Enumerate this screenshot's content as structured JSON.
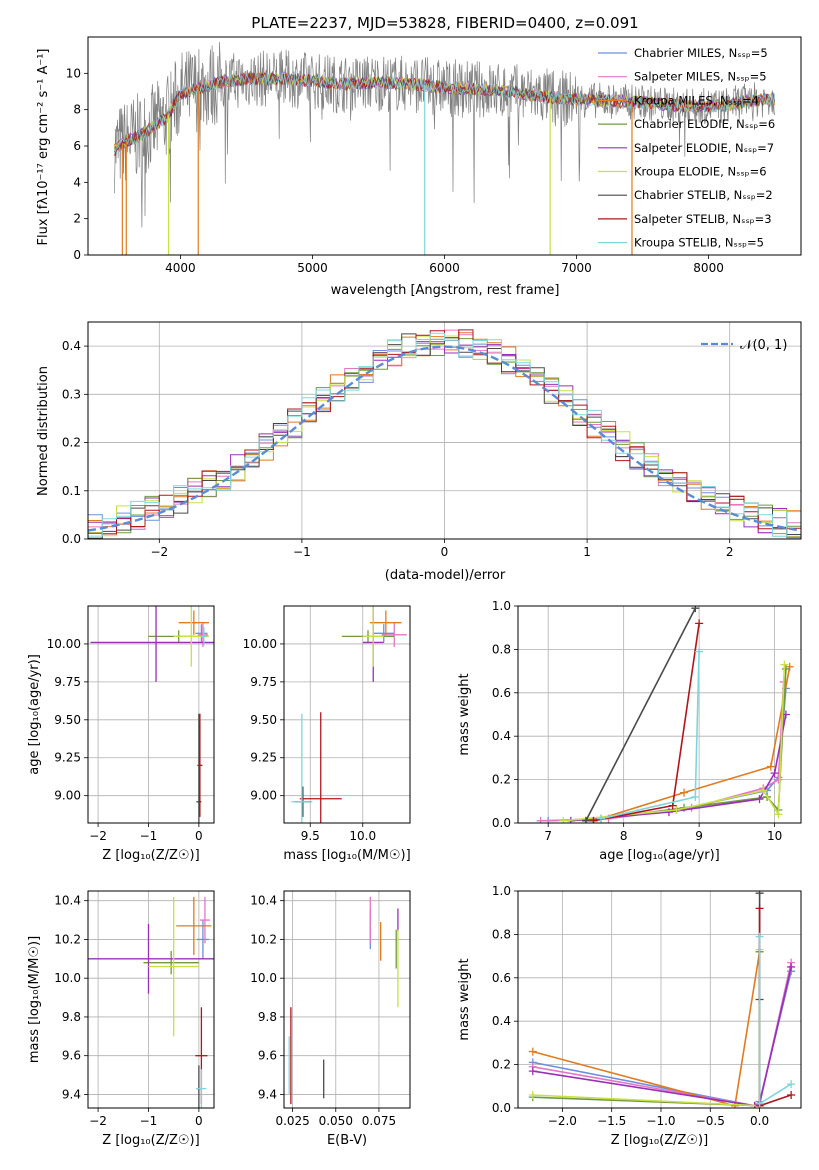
{
  "colors": {
    "Chabrier MILES": "#6b8fe0",
    "Salpeter MILES": "#e377c2",
    "Kroupa MILES": "#e07b20",
    "Chabrier ELODIE": "#6f9a3f",
    "Salpeter ELODIE": "#9a30b8",
    "Kroupa ELODIE": "#c8e045",
    "Chabrier STELIB": "#4a4a4a",
    "Salpeter STELIB": "#b0151b",
    "Kroupa STELIB": "#7ed6dc",
    "normal": "#5b8bd6",
    "data": "#808080"
  },
  "chart_data": [
    {
      "id": "spectrum",
      "type": "line",
      "title": "PLATE=2237, MJD=53828, FIBERID=0400, z=0.091",
      "xlabel": "wavelength [Angstrom, rest frame]",
      "ylabel": "Flux [fλ10⁻¹⁷ erg cm⁻² s⁻¹ A⁻¹]",
      "xlim": [
        3300,
        8700
      ],
      "ylim": [
        0,
        12
      ],
      "xticks": [
        "4000",
        "5000",
        "6000",
        "7000",
        "8000"
      ],
      "yticks": [
        "0",
        "2",
        "4",
        "6",
        "8",
        "10"
      ],
      "legend_position": "right",
      "legend": [
        {
          "label": "Chabrier MILES, Nₛₛₚ=5",
          "series": "Chabrier MILES"
        },
        {
          "label": "Salpeter MILES, Nₛₛₚ=5",
          "series": "Salpeter MILES"
        },
        {
          "label": "Kroupa MILES, Nₛₛₚ=4",
          "series": "Kroupa MILES"
        },
        {
          "label": "Chabrier ELODIE, Nₛₛₚ=6",
          "series": "Chabrier ELODIE"
        },
        {
          "label": "Salpeter ELODIE, Nₛₛₚ=7",
          "series": "Salpeter ELODIE"
        },
        {
          "label": "Kroupa ELODIE, Nₛₛₚ=6",
          "series": "Kroupa ELODIE"
        },
        {
          "label": "Chabrier STELIB, Nₛₛₚ=2",
          "series": "Chabrier STELIB"
        },
        {
          "label": "Salpeter STELIB, Nₛₛₚ=3",
          "series": "Salpeter STELIB"
        },
        {
          "label": "Kroupa STELIB, Nₛₛₚ=5",
          "series": "Kroupa STELIB"
        }
      ],
      "continuum": [
        [
          3500,
          5.8
        ],
        [
          3600,
          6.3
        ],
        [
          3700,
          6.6
        ],
        [
          3800,
          7.1
        ],
        [
          3900,
          7.6
        ],
        [
          4000,
          8.9
        ],
        [
          4100,
          9.1
        ],
        [
          4300,
          9.5
        ],
        [
          4500,
          9.7
        ],
        [
          4800,
          9.7
        ],
        [
          5000,
          9.6
        ],
        [
          5200,
          9.4
        ],
        [
          5500,
          9.5
        ],
        [
          5800,
          9.4
        ],
        [
          6000,
          9.2
        ],
        [
          6300,
          9.1
        ],
        [
          6600,
          8.9
        ],
        [
          6900,
          8.6
        ],
        [
          7200,
          8.5
        ],
        [
          7500,
          8.4
        ],
        [
          7800,
          8.2
        ],
        [
          8100,
          8.2
        ],
        [
          8300,
          8.5
        ],
        [
          8500,
          8.6
        ]
      ],
      "spikes": [
        [
          3560,
          0
        ],
        [
          3590,
          0
        ],
        [
          3910,
          0
        ],
        [
          4135,
          0
        ],
        [
          5850,
          0
        ],
        [
          6800,
          0
        ],
        [
          7420,
          0
        ]
      ]
    },
    {
      "id": "residuals",
      "type": "histogram",
      "xlabel": "(data-model)/error",
      "ylabel": "Normed distribution",
      "xlim": [
        -2.5,
        2.5
      ],
      "ylim": [
        0,
        0.45
      ],
      "xticks": [
        "−2",
        "−1",
        "0",
        "1",
        "2"
      ],
      "yticks": [
        "0.0",
        "0.1",
        "0.2",
        "0.3",
        "0.4"
      ],
      "legend_position": "top-right",
      "legend": [
        {
          "label": "𝒩(0, 1)",
          "series": "normal"
        }
      ],
      "bin_edges": [
        -2.5,
        2.5
      ],
      "bin_width": 0.1
    },
    {
      "id": "age_vs_Z",
      "type": "errorbar",
      "xlabel": "Z [log₁₀(Z/Z☉)]",
      "ylabel": "age  [log₁₀(age/yr)]",
      "xlim": [
        -2.2,
        0.3
      ],
      "ylim": [
        8.82,
        10.25
      ],
      "xticks": [
        "−2",
        "−1",
        "0"
      ],
      "yticks": [
        "9.00",
        "9.25",
        "9.50",
        "9.75",
        "10.00"
      ],
      "points": [
        {
          "series": "Chabrier MILES",
          "x": 0.05,
          "y": 10.07,
          "xerr": 0.12,
          "yerr": 0.06
        },
        {
          "series": "Salpeter MILES",
          "x": 0.08,
          "y": 10.06,
          "xerr": 0.1,
          "yerr": 0.08
        },
        {
          "series": "Kroupa MILES",
          "x": -0.1,
          "y": 10.14,
          "xerr": 0.3,
          "yerr": 0.08
        },
        {
          "series": "Chabrier ELODIE",
          "x": -0.4,
          "y": 10.05,
          "xerr": 0.6,
          "yerr": 0.04
        },
        {
          "series": "Salpeter ELODIE",
          "x": -0.85,
          "y": 10.01,
          "xerr": 1.3,
          "yerr": 0.26
        },
        {
          "series": "Kroupa ELODIE",
          "x": -0.15,
          "y": 10.05,
          "xerr": 0.35,
          "yerr": 0.2
        },
        {
          "series": "Chabrier STELIB",
          "x": 0.0,
          "y": 8.96,
          "xerr": 0.05,
          "yerr": 0.58
        },
        {
          "series": "Salpeter STELIB",
          "x": 0.02,
          "y": 9.2,
          "xerr": 0.05,
          "yerr": 0.34
        },
        {
          "series": "Kroupa STELIB",
          "x": 0.1,
          "y": 10.05,
          "xerr": 0.05,
          "yerr": 0.06
        }
      ]
    },
    {
      "id": "age_vs_mass",
      "type": "errorbar",
      "xlabel": "mass [log₁₀(M/M☉)]",
      "ylabel": "",
      "xlim": [
        9.25,
        10.45
      ],
      "ylim": [
        8.82,
        10.25
      ],
      "xticks": [
        "9.5",
        "10.0"
      ],
      "yticks": [
        "9.00",
        "9.25",
        "9.50",
        "9.75",
        "10.00"
      ],
      "points": [
        {
          "series": "Chabrier MILES",
          "x": 10.2,
          "y": 10.07,
          "xerr": 0.1,
          "yerr": 0.06
        },
        {
          "series": "Salpeter MILES",
          "x": 10.3,
          "y": 10.06,
          "xerr": 0.12,
          "yerr": 0.08
        },
        {
          "series": "Kroupa MILES",
          "x": 10.22,
          "y": 10.14,
          "xerr": 0.15,
          "yerr": 0.08
        },
        {
          "series": "Chabrier ELODIE",
          "x": 10.05,
          "y": 10.05,
          "xerr": 0.25,
          "yerr": 0.04
        },
        {
          "series": "Salpeter ELODIE",
          "x": 10.1,
          "y": 10.01,
          "xerr": 0.1,
          "yerr": 0.26
        },
        {
          "series": "Kroupa ELODIE",
          "x": 10.1,
          "y": 10.05,
          "xerr": 0.1,
          "yerr": 0.2
        },
        {
          "series": "Chabrier STELIB",
          "x": 9.43,
          "y": 8.96,
          "xerr": 0.08,
          "yerr": 0.1
        },
        {
          "series": "Salpeter STELIB",
          "x": 9.6,
          "y": 8.98,
          "xerr": 0.2,
          "yerr": 0.57
        },
        {
          "series": "Kroupa STELIB",
          "x": 9.42,
          "y": 8.96,
          "xerr": 0.1,
          "yerr": 0.58
        }
      ]
    },
    {
      "id": "weight_vs_age",
      "type": "line",
      "xlabel": "age  [log₁₀(age/yr)]",
      "ylabel": "mass weight",
      "xlim": [
        6.6,
        10.35
      ],
      "ylim": [
        0,
        1
      ],
      "xticks": [
        "7",
        "8",
        "9",
        "10"
      ],
      "yticks": [
        "0.0",
        "0.2",
        "0.4",
        "0.6",
        "0.8",
        "1.0"
      ],
      "series": [
        {
          "name": "Chabrier MILES",
          "x": [
            7.0,
            7.7,
            8.7,
            9.9,
            10.05,
            10.15
          ],
          "y": [
            0.01,
            0.02,
            0.06,
            0.15,
            0.21,
            0.62
          ]
        },
        {
          "name": "Salpeter MILES",
          "x": [
            6.9,
            7.8,
            8.9,
            9.85,
            10.05,
            10.12
          ],
          "y": [
            0.01,
            0.02,
            0.07,
            0.16,
            0.2,
            0.65
          ]
        },
        {
          "name": "Kroupa MILES",
          "x": [
            7.6,
            8.8,
            9.95,
            10.2
          ],
          "y": [
            0.01,
            0.14,
            0.26,
            0.72
          ]
        },
        {
          "name": "Chabrier ELODIE",
          "x": [
            7.5,
            8.8,
            9.9,
            10.05,
            10.15
          ],
          "y": [
            0.01,
            0.07,
            0.12,
            0.06,
            0.71
          ]
        },
        {
          "name": "Salpeter ELODIE",
          "x": [
            7.3,
            8.6,
            9.8,
            10.0,
            10.15
          ],
          "y": [
            0.01,
            0.05,
            0.11,
            0.23,
            0.5
          ]
        },
        {
          "name": "Kroupa ELODIE",
          "x": [
            7.2,
            8.7,
            9.85,
            10.05,
            10.13
          ],
          "y": [
            0.01,
            0.06,
            0.15,
            0.04,
            0.73
          ]
        },
        {
          "name": "Chabrier STELIB",
          "x": [
            7.5,
            8.95
          ],
          "y": [
            0.01,
            0.99
          ]
        },
        {
          "name": "Salpeter STELIB",
          "x": [
            7.6,
            8.65,
            9.0
          ],
          "y": [
            0.01,
            0.08,
            0.92
          ]
        },
        {
          "name": "Kroupa STELIB",
          "x": [
            7.7,
            8.95,
            9.0
          ],
          "y": [
            0.02,
            0.12,
            0.79
          ]
        }
      ]
    },
    {
      "id": "mass_vs_Z",
      "type": "errorbar",
      "xlabel": "Z [log₁₀(Z/Z☉)]",
      "ylabel": "mass [log₁₀(M/M☉)]",
      "xlim": [
        -2.2,
        0.3
      ],
      "ylim": [
        9.33,
        10.45
      ],
      "xticks": [
        "−2",
        "−1",
        "0"
      ],
      "yticks": [
        "9.4",
        "9.6",
        "9.8",
        "10.0",
        "10.2",
        "10.4"
      ],
      "points": [
        {
          "series": "Chabrier MILES",
          "x": 0.08,
          "y": 10.2,
          "xerr": 0.12,
          "yerr": 0.1
        },
        {
          "series": "Salpeter MILES",
          "x": 0.12,
          "y": 10.3,
          "xerr": 0.1,
          "yerr": 0.12
        },
        {
          "series": "Kroupa MILES",
          "x": -0.1,
          "y": 10.27,
          "xerr": 0.35,
          "yerr": 0.15
        },
        {
          "series": "Chabrier ELODIE",
          "x": -0.55,
          "y": 10.08,
          "xerr": 0.55,
          "yerr": 0.06
        },
        {
          "series": "Salpeter ELODIE",
          "x": -1.0,
          "y": 10.1,
          "xerr": 1.3,
          "yerr": 0.18
        },
        {
          "series": "Kroupa ELODIE",
          "x": -0.5,
          "y": 10.06,
          "xerr": 0.5,
          "yerr": 0.36
        },
        {
          "series": "Chabrier STELIB",
          "x": 0.0,
          "y": 9.43,
          "xerr": 0.05,
          "yerr": 0.12
        },
        {
          "series": "Salpeter STELIB",
          "x": 0.05,
          "y": 9.6,
          "xerr": 0.12,
          "yerr": 0.25
        },
        {
          "series": "Kroupa STELIB",
          "x": 0.05,
          "y": 9.43,
          "xerr": 0.1,
          "yerr": 0.1
        }
      ]
    },
    {
      "id": "mass_vs_EBV",
      "type": "errorbar",
      "xlabel": "E(B-V)",
      "ylabel": "",
      "xlim": [
        0.02,
        0.093
      ],
      "ylim": [
        9.33,
        10.45
      ],
      "xticks": [
        "0.025",
        "0.050",
        "0.075"
      ],
      "yticks": [
        "9.4",
        "9.6",
        "9.8",
        "10.0",
        "10.2",
        "10.4"
      ],
      "points": [
        {
          "series": "Chabrier MILES",
          "x": 0.07,
          "y": 10.25,
          "xerr": 0,
          "yerr": 0.1
        },
        {
          "series": "Salpeter MILES",
          "x": 0.07,
          "y": 10.3,
          "xerr": 0,
          "yerr": 0.12
        },
        {
          "series": "Kroupa MILES",
          "x": 0.076,
          "y": 10.19,
          "xerr": 0,
          "yerr": 0.1
        },
        {
          "series": "Chabrier ELODIE",
          "x": 0.085,
          "y": 10.15,
          "xerr": 0,
          "yerr": 0.1
        },
        {
          "series": "Salpeter ELODIE",
          "x": 0.086,
          "y": 10.3,
          "xerr": 0,
          "yerr": 0.06
        },
        {
          "series": "Kroupa ELODIE",
          "x": 0.086,
          "y": 10.05,
          "xerr": 0,
          "yerr": 0.2
        },
        {
          "series": "Chabrier STELIB",
          "x": 0.043,
          "y": 9.48,
          "xerr": 0,
          "yerr": 0.1
        },
        {
          "series": "Salpeter STELIB",
          "x": 0.024,
          "y": 9.6,
          "xerr": 0,
          "yerr": 0.25
        },
        {
          "series": "Kroupa STELIB",
          "x": 0.023,
          "y": 9.55,
          "xerr": 0,
          "yerr": 0.15
        }
      ]
    },
    {
      "id": "weight_vs_Z",
      "type": "line",
      "xlabel": "Z [log₁₀(Z/Z☉)]",
      "ylabel": "mass weight",
      "xlim": [
        -2.45,
        0.42
      ],
      "ylim": [
        0,
        1
      ],
      "xticks": [
        "−2.0",
        "−1.5",
        "−1.0",
        "−0.5",
        "0.0"
      ],
      "yticks": [
        "0.0",
        "0.2",
        "0.4",
        "0.6",
        "0.8",
        "1.0"
      ],
      "series": [
        {
          "name": "Chabrier MILES",
          "x": [
            -2.3,
            -0.05,
            0.0,
            0.32
          ],
          "y": [
            0.21,
            0.01,
            0.03,
            0.63
          ]
        },
        {
          "name": "Salpeter MILES",
          "x": [
            -2.3,
            -0.05,
            0.0,
            0.32
          ],
          "y": [
            0.19,
            0.01,
            0.02,
            0.67
          ]
        },
        {
          "name": "Kroupa MILES",
          "x": [
            -2.3,
            -0.25,
            0.0
          ],
          "y": [
            0.26,
            0.01,
            0.72
          ]
        },
        {
          "name": "Chabrier ELODIE",
          "x": [
            -2.3,
            0.0,
            0.0
          ],
          "y": [
            0.05,
            0.01,
            0.72
          ]
        },
        {
          "name": "Salpeter ELODIE",
          "x": [
            -2.3,
            -0.05,
            0.0,
            0.32
          ],
          "y": [
            0.17,
            0.01,
            0.02,
            0.65
          ]
        },
        {
          "name": "Kroupa ELODIE",
          "x": [
            -2.3,
            0.0,
            0.0
          ],
          "y": [
            0.06,
            0.01,
            0.73
          ]
        },
        {
          "name": "Chabrier STELIB",
          "x": [
            0.0,
            0.0
          ],
          "y": [
            0.5,
            0.99
          ]
        },
        {
          "name": "Salpeter STELIB",
          "x": [
            0.0,
            0.0,
            0.32
          ],
          "y": [
            0.92,
            0.01,
            0.06
          ]
        },
        {
          "name": "Kroupa STELIB",
          "x": [
            0.0,
            0.0,
            0.32
          ],
          "y": [
            0.79,
            0.02,
            0.11
          ]
        }
      ]
    }
  ]
}
